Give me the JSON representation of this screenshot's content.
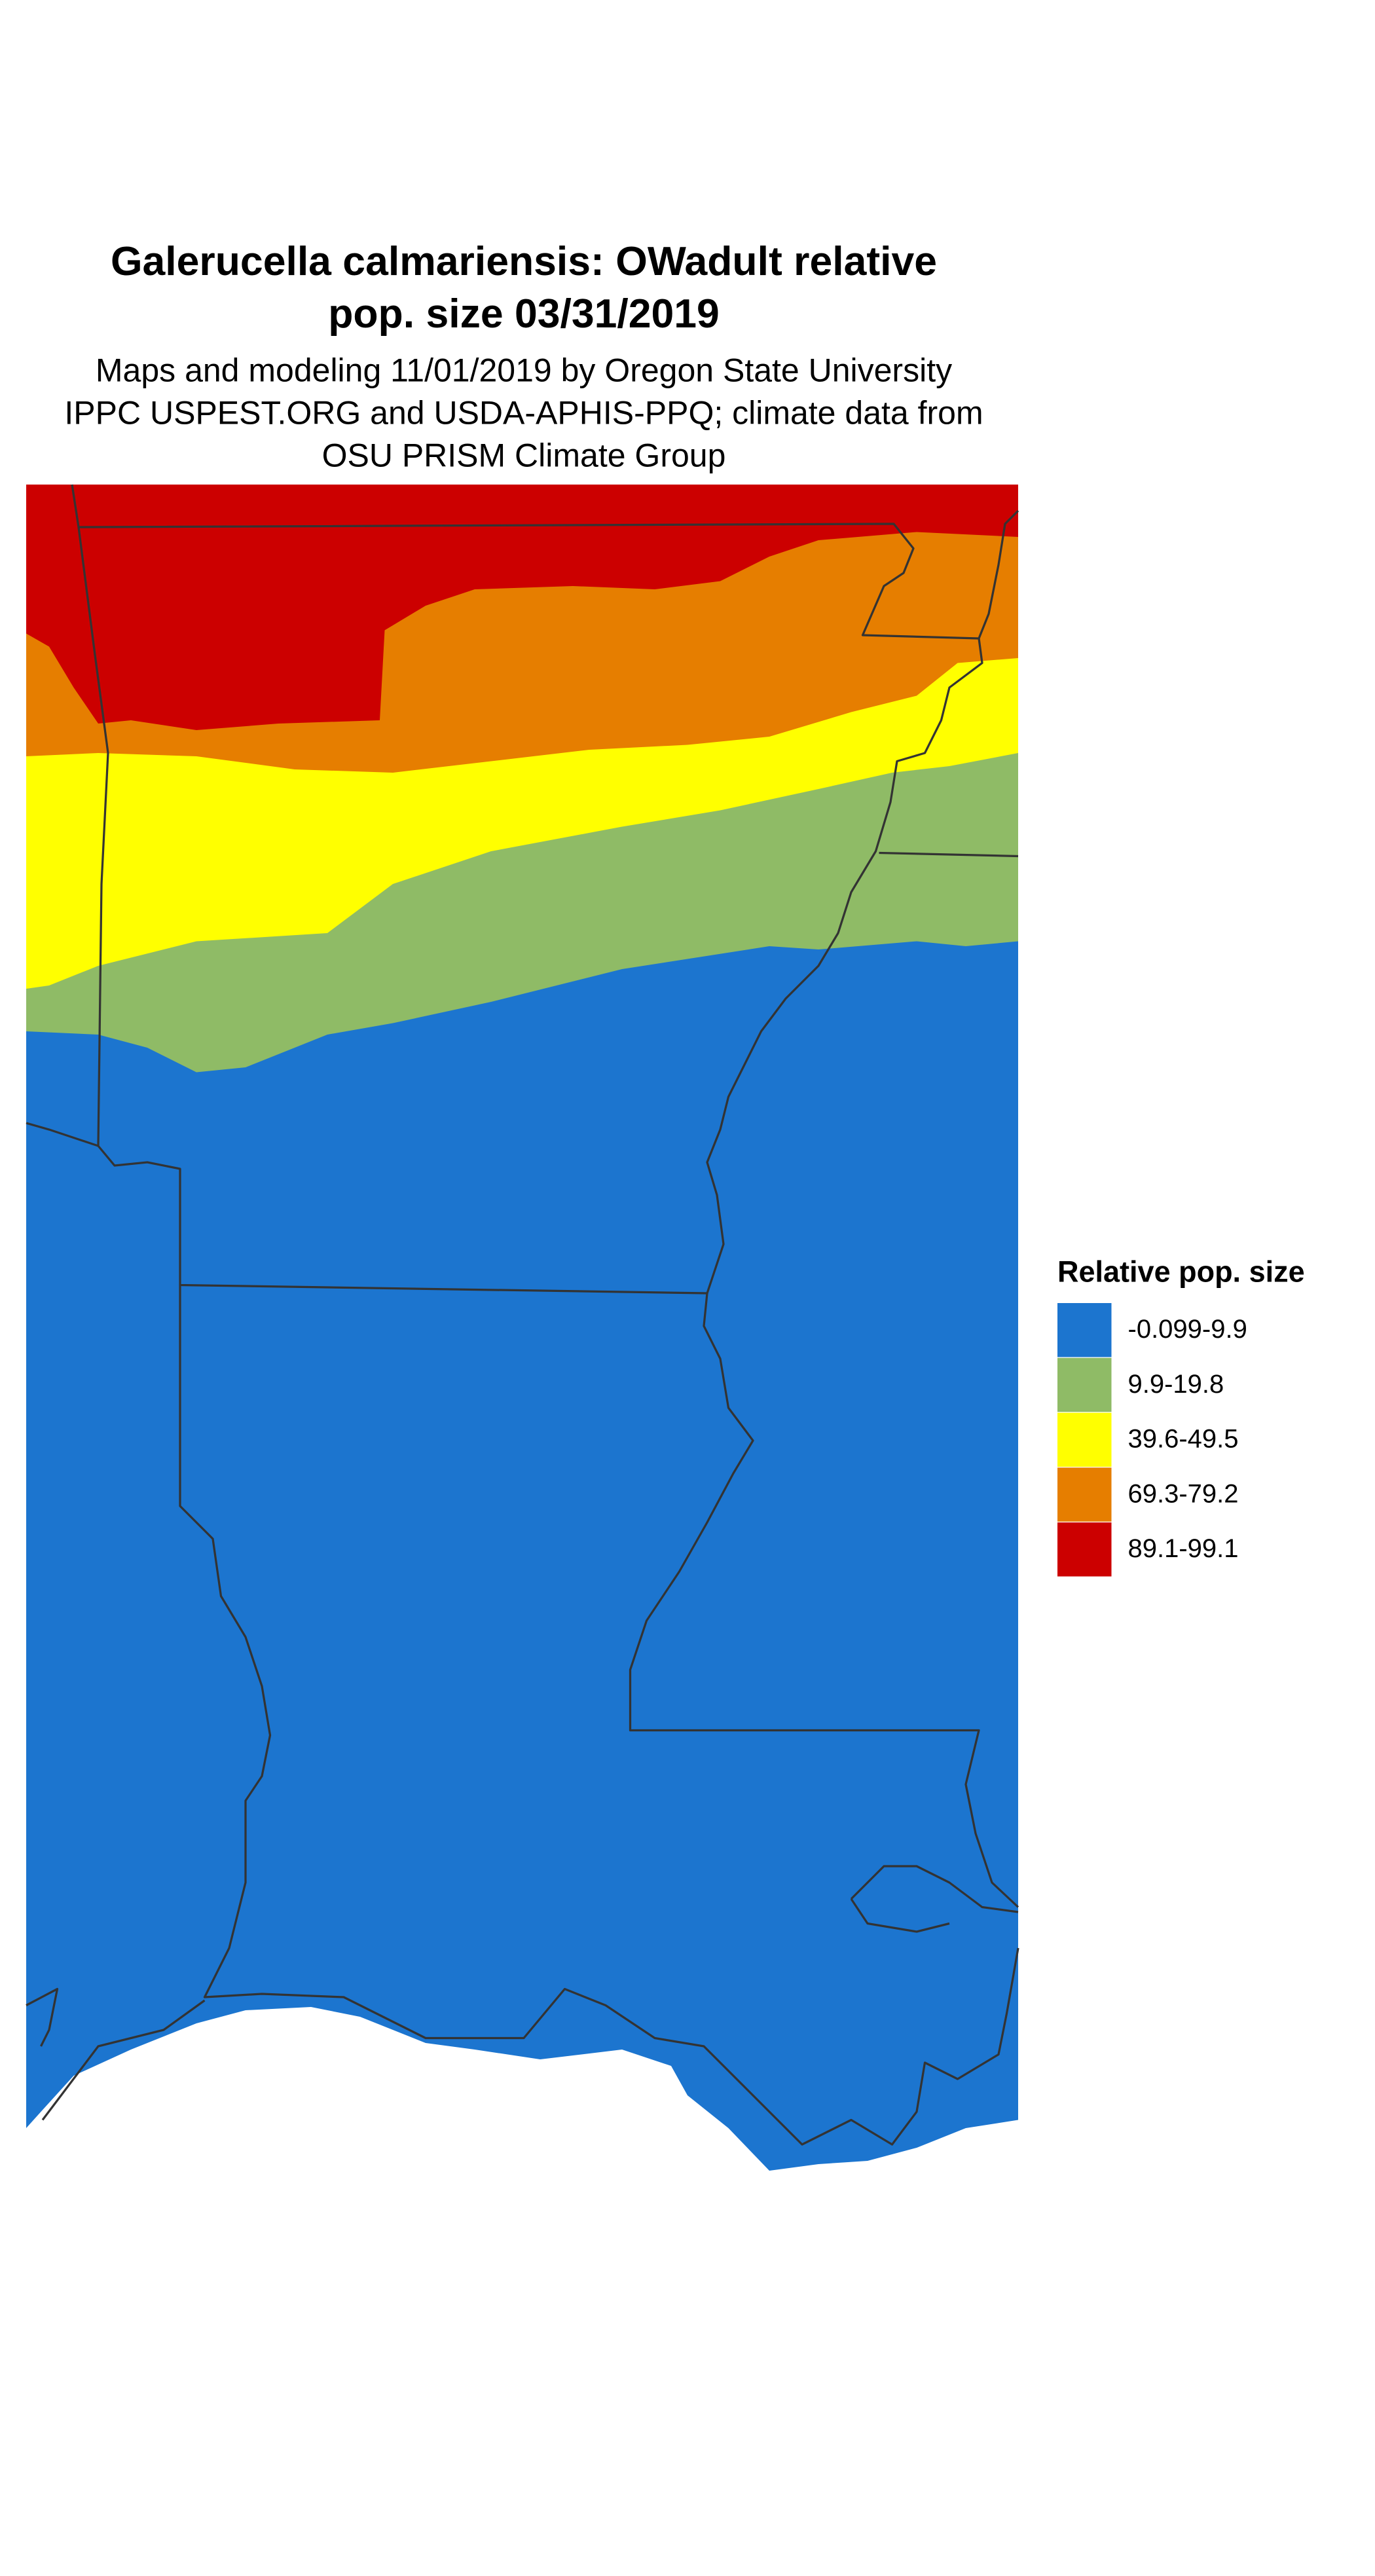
{
  "title": [
    "Galerucella calmariensis: OWadult relative",
    "pop. size 03/31/2019"
  ],
  "subtitle": [
    "Maps and modeling 11/01/2019 by Oregon State University",
    "IPPC USPEST.ORG and USDA-APHIS-PPQ; climate data from",
    "OSU PRISM Climate Group"
  ],
  "legend": {
    "title": "Relative pop. size",
    "items": [
      {
        "label": "-0.099-9.9",
        "color": "#1c75cf"
      },
      {
        "label": "9.9-19.8",
        "color": "#8fbb66"
      },
      {
        "label": "39.6-49.5",
        "color": "#ffff00"
      },
      {
        "label": "69.3-79.2",
        "color": "#e67e00"
      },
      {
        "label": "89.1-99.1",
        "color": "#cc0000"
      }
    ]
  }
}
